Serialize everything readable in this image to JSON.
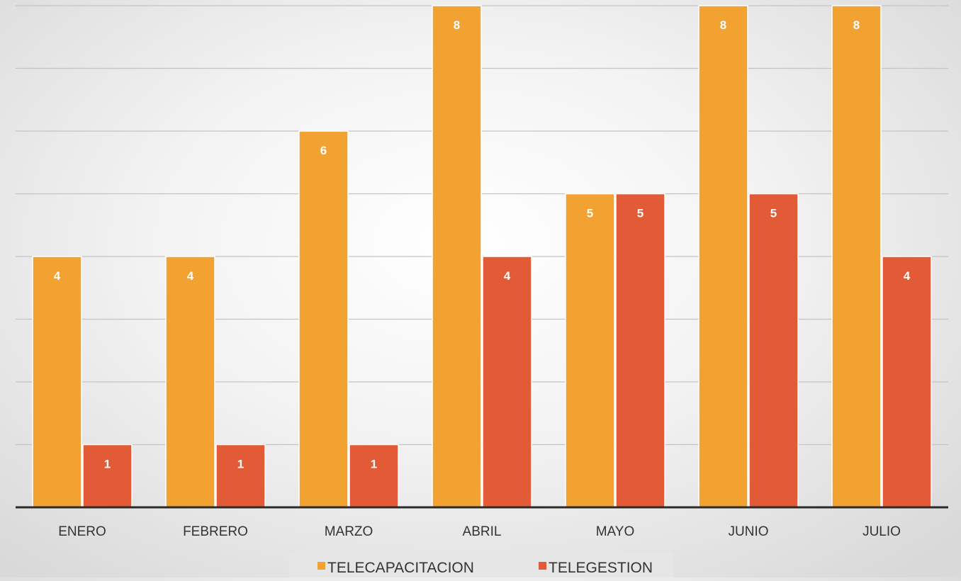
{
  "chart_data": {
    "type": "bar",
    "categories": [
      "ENERO",
      "FEBRERO",
      "MARZO",
      "ABRIL",
      "MAYO",
      "JUNIO",
      "JULIO"
    ],
    "series": [
      {
        "name": "TELECAPACITACION",
        "values": [
          4,
          4,
          6,
          8,
          5,
          8,
          8
        ],
        "color": "#F2A230"
      },
      {
        "name": "TELEGESTION",
        "values": [
          1,
          1,
          1,
          4,
          5,
          5,
          4
        ],
        "color": "#E35B36"
      }
    ],
    "ylim": [
      0,
      8
    ],
    "grid": true,
    "data_labels": true,
    "legend_position": "bottom"
  }
}
